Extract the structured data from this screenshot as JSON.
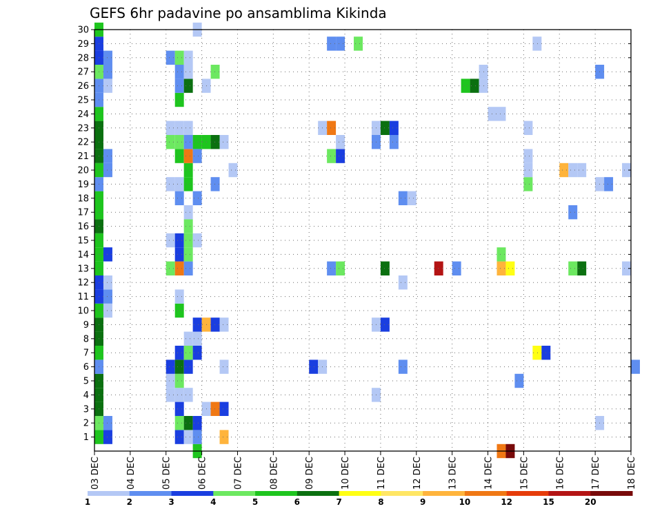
{
  "chart_data": {
    "type": "heatmap",
    "title": "GEFS 6hr padavine po ansamblima Kikinda",
    "x_tick_labels": [
      "03 DEC",
      "04 DEC",
      "05 DEC",
      "06 DEC",
      "07 DEC",
      "08 DEC",
      "09 DEC",
      "10 DEC",
      "11 DEC",
      "12 DEC",
      "13 DEC",
      "14 DEC",
      "15 DEC",
      "16 DEC",
      "17 DEC",
      "18 DEC"
    ],
    "y_tick_labels": [
      "1",
      "2",
      "3",
      "4",
      "5",
      "6",
      "7",
      "8",
      "9",
      "10",
      "11",
      "12",
      "13",
      "14",
      "15",
      "16",
      "17",
      "18",
      "19",
      "20",
      "21",
      "22",
      "23",
      "24",
      "25",
      "26",
      "27",
      "28",
      "29",
      "30"
    ],
    "x_range_days": [
      0,
      15
    ],
    "y_range": [
      0,
      30
    ],
    "step_hours": 6,
    "grid": true,
    "colorbar": {
      "levels": [
        "1",
        "2",
        "3",
        "4",
        "5",
        "6",
        "7",
        "8",
        "9",
        "10",
        "12",
        "15",
        "20"
      ],
      "colors": [
        "#b4c8f5",
        "#5f8ef0",
        "#1a3ee0",
        "#6ce860",
        "#1ec51e",
        "#0b7010",
        "#ffff14",
        "#ffe664",
        "#ffb43c",
        "#f07814",
        "#e63c0a",
        "#b41414",
        "#780a0a"
      ]
    },
    "cells": [
      {
        "day": 0,
        "step": 0,
        "member": 0,
        "class": 4
      },
      {
        "day": 0,
        "step": 0,
        "member": 1,
        "class": 3
      },
      {
        "day": 0,
        "step": 0,
        "member": 2,
        "class": 5
      },
      {
        "day": 0,
        "step": 0,
        "member": 3,
        "class": 5
      },
      {
        "day": 0,
        "step": 0,
        "member": 4,
        "class": 5
      },
      {
        "day": 0,
        "step": 0,
        "member": 5,
        "class": 1
      },
      {
        "day": 0,
        "step": 0,
        "member": 6,
        "class": 4
      },
      {
        "day": 0,
        "step": 0,
        "member": 7,
        "class": 5
      },
      {
        "day": 0,
        "step": 0,
        "member": 8,
        "class": 5
      },
      {
        "day": 0,
        "step": 0,
        "member": 9,
        "class": 4
      },
      {
        "day": 0,
        "step": 0,
        "member": 10,
        "class": 2
      },
      {
        "day": 0,
        "step": 0,
        "member": 11,
        "class": 2
      },
      {
        "day": 0,
        "step": 0,
        "member": 12,
        "class": 4
      },
      {
        "day": 0,
        "step": 0,
        "member": 13,
        "class": 4
      },
      {
        "day": 0,
        "step": 0,
        "member": 14,
        "class": 4
      },
      {
        "day": 0,
        "step": 0,
        "member": 15,
        "class": 5
      },
      {
        "day": 0,
        "step": 0,
        "member": 16,
        "class": 4
      },
      {
        "day": 0,
        "step": 0,
        "member": 17,
        "class": 4
      },
      {
        "day": 0,
        "step": 0,
        "member": 18,
        "class": 1
      },
      {
        "day": 0,
        "step": 0,
        "member": 19,
        "class": 4
      },
      {
        "day": 0,
        "step": 0,
        "member": 20,
        "class": 5
      },
      {
        "day": 0,
        "step": 0,
        "member": 21,
        "class": 5
      },
      {
        "day": 0,
        "step": 0,
        "member": 22,
        "class": 5
      },
      {
        "day": 0,
        "step": 0,
        "member": 23,
        "class": 4
      },
      {
        "day": 0,
        "step": 0,
        "member": 24,
        "class": 1
      },
      {
        "day": 0,
        "step": 0,
        "member": 25,
        "class": 1
      },
      {
        "day": 0,
        "step": 0,
        "member": 26,
        "class": 3
      },
      {
        "day": 0,
        "step": 0,
        "member": 27,
        "class": 2
      },
      {
        "day": 0,
        "step": 0,
        "member": 28,
        "class": 2
      },
      {
        "day": 0,
        "step": 0,
        "member": 29,
        "class": 4
      },
      {
        "day": 0,
        "step": 1,
        "member": 0,
        "class": 2
      },
      {
        "day": 0,
        "step": 1,
        "member": 1,
        "class": 1
      },
      {
        "day": 0,
        "step": 1,
        "member": 9,
        "class": 0
      },
      {
        "day": 0,
        "step": 1,
        "member": 10,
        "class": 1
      },
      {
        "day": 0,
        "step": 1,
        "member": 11,
        "class": 0
      },
      {
        "day": 0,
        "step": 1,
        "member": 13,
        "class": 2
      },
      {
        "day": 0,
        "step": 1,
        "member": 19,
        "class": 1
      },
      {
        "day": 0,
        "step": 1,
        "member": 20,
        "class": 1
      },
      {
        "day": 0,
        "step": 1,
        "member": 25,
        "class": 0
      },
      {
        "day": 0,
        "step": 1,
        "member": 26,
        "class": 1
      },
      {
        "day": 0,
        "step": 1,
        "member": 27,
        "class": 1
      },
      {
        "day": 2,
        "step": 0,
        "member": 3,
        "class": 0
      },
      {
        "day": 2,
        "step": 0,
        "member": 4,
        "class": 0
      },
      {
        "day": 2,
        "step": 0,
        "member": 5,
        "class": 2
      },
      {
        "day": 2,
        "step": 0,
        "member": 12,
        "class": 3
      },
      {
        "day": 2,
        "step": 0,
        "member": 14,
        "class": 0
      },
      {
        "day": 2,
        "step": 0,
        "member": 18,
        "class": 0
      },
      {
        "day": 2,
        "step": 0,
        "member": 21,
        "class": 3
      },
      {
        "day": 2,
        "step": 0,
        "member": 22,
        "class": 0
      },
      {
        "day": 2,
        "step": 0,
        "member": 27,
        "class": 1
      },
      {
        "day": 2,
        "step": 1,
        "member": 0,
        "class": 2
      },
      {
        "day": 2,
        "step": 1,
        "member": 1,
        "class": 3
      },
      {
        "day": 2,
        "step": 1,
        "member": 2,
        "class": 2
      },
      {
        "day": 2,
        "step": 1,
        "member": 3,
        "class": 0
      },
      {
        "day": 2,
        "step": 1,
        "member": 4,
        "class": 3
      },
      {
        "day": 2,
        "step": 1,
        "member": 5,
        "class": 5
      },
      {
        "day": 2,
        "step": 1,
        "member": 6,
        "class": 2
      },
      {
        "day": 2,
        "step": 1,
        "member": 9,
        "class": 4
      },
      {
        "day": 2,
        "step": 1,
        "member": 10,
        "class": 0
      },
      {
        "day": 2,
        "step": 1,
        "member": 12,
        "class": 9
      },
      {
        "day": 2,
        "step": 1,
        "member": 13,
        "class": 2
      },
      {
        "day": 2,
        "step": 1,
        "member": 14,
        "class": 2
      },
      {
        "day": 2,
        "step": 1,
        "member": 17,
        "class": 1
      },
      {
        "day": 2,
        "step": 1,
        "member": 18,
        "class": 0
      },
      {
        "day": 2,
        "step": 1,
        "member": 20,
        "class": 4
      },
      {
        "day": 2,
        "step": 1,
        "member": 21,
        "class": 3
      },
      {
        "day": 2,
        "step": 1,
        "member": 22,
        "class": 0
      },
      {
        "day": 2,
        "step": 1,
        "member": 24,
        "class": 4
      },
      {
        "day": 2,
        "step": 1,
        "member": 25,
        "class": 1
      },
      {
        "day": 2,
        "step": 1,
        "member": 26,
        "class": 1
      },
      {
        "day": 2,
        "step": 1,
        "member": 27,
        "class": 3
      },
      {
        "day": 2,
        "step": 2,
        "member": 0,
        "class": 0
      },
      {
        "day": 2,
        "step": 2,
        "member": 1,
        "class": 5
      },
      {
        "day": 2,
        "step": 2,
        "member": 3,
        "class": 0
      },
      {
        "day": 2,
        "step": 2,
        "member": 5,
        "class": 2
      },
      {
        "day": 2,
        "step": 2,
        "member": 6,
        "class": 3
      },
      {
        "day": 2,
        "step": 2,
        "member": 7,
        "class": 0
      },
      {
        "day": 2,
        "step": 2,
        "member": 12,
        "class": 1
      },
      {
        "day": 2,
        "step": 2,
        "member": 13,
        "class": 3
      },
      {
        "day": 2,
        "step": 2,
        "member": 14,
        "class": 3
      },
      {
        "day": 2,
        "step": 2,
        "member": 15,
        "class": 3
      },
      {
        "day": 2,
        "step": 2,
        "member": 16,
        "class": 0
      },
      {
        "day": 2,
        "step": 2,
        "member": 18,
        "class": 4
      },
      {
        "day": 2,
        "step": 2,
        "member": 19,
        "class": 4
      },
      {
        "day": 2,
        "step": 2,
        "member": 20,
        "class": 9
      },
      {
        "day": 2,
        "step": 2,
        "member": 21,
        "class": 1
      },
      {
        "day": 2,
        "step": 2,
        "member": 22,
        "class": 0
      },
      {
        "day": 2,
        "step": 2,
        "member": 25,
        "class": 5
      },
      {
        "day": 2,
        "step": 2,
        "member": 26,
        "class": 0
      },
      {
        "day": 2,
        "step": 2,
        "member": 27,
        "class": 0
      },
      {
        "day": 2,
        "step": 3,
        "member": -1,
        "class": 4
      },
      {
        "day": 2,
        "step": 3,
        "member": 0,
        "class": 1
      },
      {
        "day": 2,
        "step": 3,
        "member": 1,
        "class": 2
      },
      {
        "day": 2,
        "step": 3,
        "member": 6,
        "class": 2
      },
      {
        "day": 2,
        "step": 3,
        "member": 7,
        "class": 0
      },
      {
        "day": 2,
        "step": 3,
        "member": 8,
        "class": 2
      },
      {
        "day": 2,
        "step": 3,
        "member": 14,
        "class": 0
      },
      {
        "day": 2,
        "step": 3,
        "member": 17,
        "class": 1
      },
      {
        "day": 2,
        "step": 3,
        "member": 20,
        "class": 1
      },
      {
        "day": 2,
        "step": 3,
        "member": 21,
        "class": 4
      },
      {
        "day": 2,
        "step": 3,
        "member": 29,
        "class": 0
      },
      {
        "day": 3,
        "step": 0,
        "member": 2,
        "class": 0
      },
      {
        "day": 3,
        "step": 0,
        "member": 8,
        "class": 8
      },
      {
        "day": 3,
        "step": 0,
        "member": 21,
        "class": 4
      },
      {
        "day": 3,
        "step": 0,
        "member": 25,
        "class": 0
      },
      {
        "day": 3,
        "step": 1,
        "member": 2,
        "class": 9
      },
      {
        "day": 3,
        "step": 1,
        "member": 8,
        "class": 2
      },
      {
        "day": 3,
        "step": 1,
        "member": 18,
        "class": 1
      },
      {
        "day": 3,
        "step": 1,
        "member": 21,
        "class": 5
      },
      {
        "day": 3,
        "step": 1,
        "member": 26,
        "class": 3
      },
      {
        "day": 3,
        "step": 2,
        "member": 0,
        "class": 8
      },
      {
        "day": 3,
        "step": 2,
        "member": 2,
        "class": 2
      },
      {
        "day": 3,
        "step": 2,
        "member": 5,
        "class": 0
      },
      {
        "day": 3,
        "step": 2,
        "member": 8,
        "class": 0
      },
      {
        "day": 3,
        "step": 2,
        "member": 21,
        "class": 0
      },
      {
        "day": 3,
        "step": 3,
        "member": 19,
        "class": 0
      },
      {
        "day": 6,
        "step": 0,
        "member": 5,
        "class": 2
      },
      {
        "day": 6,
        "step": 1,
        "member": 5,
        "class": 0
      },
      {
        "day": 6,
        "step": 1,
        "member": 22,
        "class": 0
      },
      {
        "day": 6,
        "step": 2,
        "member": 12,
        "class": 1
      },
      {
        "day": 6,
        "step": 2,
        "member": 20,
        "class": 3
      },
      {
        "day": 6,
        "step": 2,
        "member": 22,
        "class": 9
      },
      {
        "day": 6,
        "step": 2,
        "member": 28,
        "class": 1
      },
      {
        "day": 6,
        "step": 3,
        "member": 12,
        "class": 3
      },
      {
        "day": 6,
        "step": 3,
        "member": 20,
        "class": 2
      },
      {
        "day": 6,
        "step": 3,
        "member": 21,
        "class": 0
      },
      {
        "day": 6,
        "step": 3,
        "member": 28,
        "class": 1
      },
      {
        "day": 7,
        "step": 1,
        "member": 28,
        "class": 3
      },
      {
        "day": 7,
        "step": 3,
        "member": 3,
        "class": 0
      },
      {
        "day": 7,
        "step": 3,
        "member": 8,
        "class": 0
      },
      {
        "day": 7,
        "step": 3,
        "member": 21,
        "class": 1
      },
      {
        "day": 7,
        "step": 3,
        "member": 22,
        "class": 0
      },
      {
        "day": 8,
        "step": 0,
        "member": 8,
        "class": 2
      },
      {
        "day": 8,
        "step": 0,
        "member": 12,
        "class": 5
      },
      {
        "day": 8,
        "step": 0,
        "member": 22,
        "class": 5
      },
      {
        "day": 8,
        "step": 1,
        "member": 21,
        "class": 1
      },
      {
        "day": 8,
        "step": 1,
        "member": 22,
        "class": 2
      },
      {
        "day": 8,
        "step": 2,
        "member": 5,
        "class": 1
      },
      {
        "day": 8,
        "step": 2,
        "member": 11,
        "class": 0
      },
      {
        "day": 8,
        "step": 2,
        "member": 17,
        "class": 1
      },
      {
        "day": 8,
        "step": 3,
        "member": 17,
        "class": 0
      },
      {
        "day": 9,
        "step": 2,
        "member": 12,
        "class": 11
      },
      {
        "day": 10,
        "step": 0,
        "member": 12,
        "class": 1
      },
      {
        "day": 10,
        "step": 1,
        "member": 25,
        "class": 4
      },
      {
        "day": 10,
        "step": 2,
        "member": 25,
        "class": 5
      },
      {
        "day": 10,
        "step": 3,
        "member": 25,
        "class": 0
      },
      {
        "day": 10,
        "step": 3,
        "member": 26,
        "class": 0
      },
      {
        "day": 11,
        "step": 0,
        "member": 23,
        "class": 0
      },
      {
        "day": 11,
        "step": 1,
        "member": -1,
        "class": 9
      },
      {
        "day": 11,
        "step": 1,
        "member": 12,
        "class": 8
      },
      {
        "day": 11,
        "step": 1,
        "member": 13,
        "class": 3
      },
      {
        "day": 11,
        "step": 1,
        "member": 23,
        "class": 0
      },
      {
        "day": 11,
        "step": 2,
        "member": -1,
        "class": 12
      },
      {
        "day": 11,
        "step": 2,
        "member": 12,
        "class": 6
      },
      {
        "day": 11,
        "step": 3,
        "member": 4,
        "class": 1
      },
      {
        "day": 12,
        "step": 0,
        "member": 18,
        "class": 3
      },
      {
        "day": 12,
        "step": 0,
        "member": 19,
        "class": 0
      },
      {
        "day": 12,
        "step": 0,
        "member": 20,
        "class": 0
      },
      {
        "day": 12,
        "step": 0,
        "member": 22,
        "class": 0
      },
      {
        "day": 12,
        "step": 1,
        "member": 6,
        "class": 6
      },
      {
        "day": 12,
        "step": 1,
        "member": 28,
        "class": 0
      },
      {
        "day": 12,
        "step": 2,
        "member": 6,
        "class": 2
      },
      {
        "day": 13,
        "step": 0,
        "member": 19,
        "class": 8
      },
      {
        "day": 13,
        "step": 1,
        "member": 12,
        "class": 3
      },
      {
        "day": 13,
        "step": 1,
        "member": 16,
        "class": 1
      },
      {
        "day": 13,
        "step": 1,
        "member": 19,
        "class": 0
      },
      {
        "day": 13,
        "step": 2,
        "member": 12,
        "class": 5
      },
      {
        "day": 13,
        "step": 2,
        "member": 19,
        "class": 0
      },
      {
        "day": 14,
        "step": 0,
        "member": 1,
        "class": 0
      },
      {
        "day": 14,
        "step": 0,
        "member": 18,
        "class": 0
      },
      {
        "day": 14,
        "step": 0,
        "member": 26,
        "class": 1
      },
      {
        "day": 14,
        "step": 1,
        "member": 18,
        "class": 1
      },
      {
        "day": 14,
        "step": 3,
        "member": 12,
        "class": 0
      },
      {
        "day": 14,
        "step": 3,
        "member": 19,
        "class": 0
      },
      {
        "day": 15,
        "step": 0,
        "member": 5,
        "class": 1
      }
    ]
  }
}
